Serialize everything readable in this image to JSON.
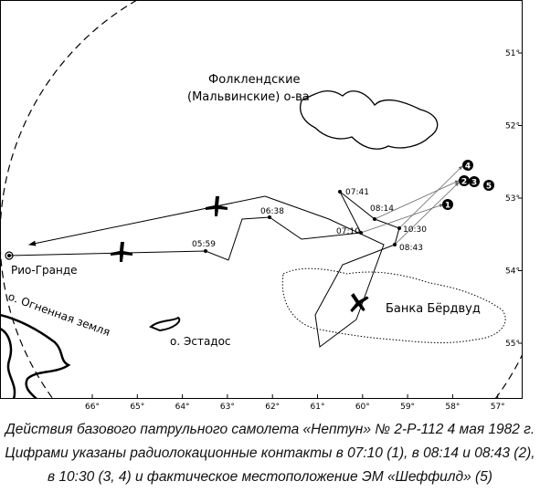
{
  "map": {
    "longitudes": [
      "66°",
      "65°",
      "64°",
      "63°",
      "62°",
      "61°",
      "60°",
      "59°",
      "58°",
      "57°"
    ],
    "latitudes": [
      "51°",
      "52°",
      "53°",
      "54°",
      "55°"
    ],
    "places": {
      "falklands_1": "Фолклендские",
      "falklands_2": "(Мальвинские) о-ва",
      "rio_grande": "Рио-Гранде",
      "tierra": "о. Огненная земля",
      "estados": "о. Эстадос",
      "burdwood": "Банка Бёрдвуд"
    },
    "times": [
      "05:59",
      "06:38",
      "07:10",
      "07:41",
      "08:14",
      "10:30",
      "08:43"
    ],
    "contacts": [
      "1",
      "2",
      "3",
      "4",
      "5"
    ]
  },
  "caption": [
    "Действия базового патрульного самолета «Нептун» № 2-Р-112 4 мая 1982 г.",
    "Цифрами указаны радиолокационные контакты в 07:10 (1), в 08:14 и 08:43 (2),",
    "в 10:30 (3, 4) и фактическое местоположение ЭМ «Шеффилд» (5)"
  ]
}
